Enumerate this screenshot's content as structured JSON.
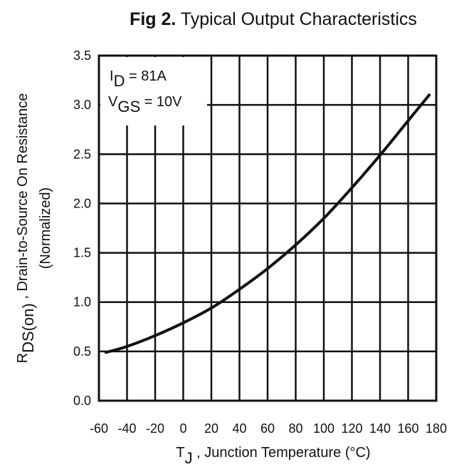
{
  "chart_data": {
    "type": "line",
    "title_prefix": "Fig 2.",
    "title": "Typical Output Characteristics",
    "xlabel_symbol": "T",
    "xlabel_sub": "J",
    "xlabel_rest": " , Junction Temperature (°C)",
    "ylabel_symbol": "R",
    "ylabel_sub": "DS(on)",
    "ylabel_rest": " , Drain-to-Source On Resistance",
    "ylabel_line2": "(Normalized)",
    "xlim": [
      -60,
      180
    ],
    "ylim": [
      0.0,
      3.5
    ],
    "xticks": [
      "-60",
      "-40",
      "-20",
      "0",
      "20",
      "40",
      "60",
      "80",
      "100",
      "120",
      "140",
      "160",
      "180"
    ],
    "yticks": [
      "0.0",
      "0.5",
      "1.0",
      "1.5",
      "2.0",
      "2.5",
      "3.0",
      "3.5"
    ],
    "grid": true,
    "annotations": {
      "id_symbol": "I",
      "id_sub": "D",
      "id_rest": " = 81A",
      "vgs_symbol": "V",
      "vgs_sub": "GS",
      "vgs_rest": " = 10V"
    },
    "series": [
      {
        "x": [
          -55,
          -40,
          -20,
          0,
          20,
          40,
          60,
          80,
          100,
          120,
          140,
          160,
          175
        ],
        "y": [
          0.49,
          0.55,
          0.66,
          0.79,
          0.94,
          1.13,
          1.34,
          1.58,
          1.85,
          2.16,
          2.49,
          2.84,
          3.1
        ]
      }
    ]
  }
}
